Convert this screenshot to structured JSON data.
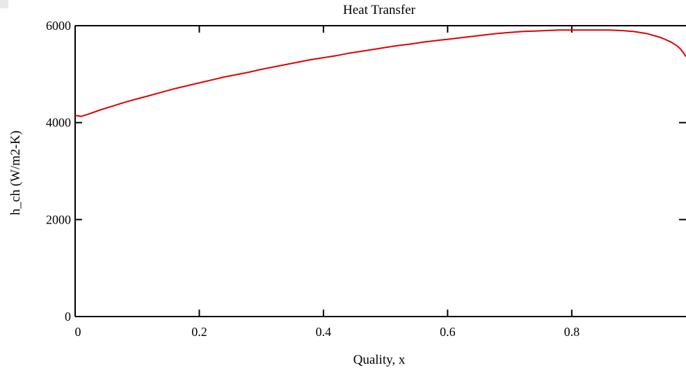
{
  "chart_data": {
    "type": "line",
    "title": "Heat Transfer",
    "xlabel": "Quality, x",
    "ylabel": "h_ch (W/m2-K)",
    "xlim": [
      0,
      0.984
    ],
    "ylim": [
      0,
      6000
    ],
    "x_ticks": [
      0,
      0.2,
      0.4,
      0.6,
      0.8
    ],
    "x_tick_labels": [
      "0",
      "0.2",
      "0.4",
      "0.6",
      "0.8"
    ],
    "y_ticks": [
      0,
      2000,
      4000,
      6000
    ],
    "y_tick_labels": [
      "0",
      "2000",
      "4000",
      "6000"
    ],
    "grid": false,
    "series": [
      {
        "color": "#e00000",
        "x": [
          0.0,
          0.01,
          0.02,
          0.04,
          0.06,
          0.08,
          0.1,
          0.12,
          0.14,
          0.16,
          0.18,
          0.2,
          0.22,
          0.24,
          0.26,
          0.28,
          0.3,
          0.32,
          0.34,
          0.36,
          0.38,
          0.4,
          0.42,
          0.44,
          0.46,
          0.48,
          0.5,
          0.52,
          0.54,
          0.56,
          0.58,
          0.6,
          0.62,
          0.64,
          0.66,
          0.68,
          0.7,
          0.72,
          0.74,
          0.76,
          0.78,
          0.8,
          0.82,
          0.84,
          0.86,
          0.88,
          0.9,
          0.92,
          0.94,
          0.95,
          0.96,
          0.97,
          0.975,
          0.98,
          0.984
        ],
        "y": [
          4150,
          4130,
          4170,
          4260,
          4340,
          4420,
          4490,
          4560,
          4630,
          4700,
          4760,
          4820,
          4880,
          4940,
          4990,
          5040,
          5100,
          5150,
          5200,
          5250,
          5300,
          5340,
          5380,
          5430,
          5470,
          5510,
          5550,
          5590,
          5620,
          5660,
          5690,
          5720,
          5750,
          5780,
          5810,
          5840,
          5860,
          5880,
          5890,
          5900,
          5910,
          5910,
          5910,
          5910,
          5910,
          5900,
          5880,
          5840,
          5770,
          5720,
          5660,
          5580,
          5520,
          5440,
          5360
        ]
      }
    ]
  }
}
